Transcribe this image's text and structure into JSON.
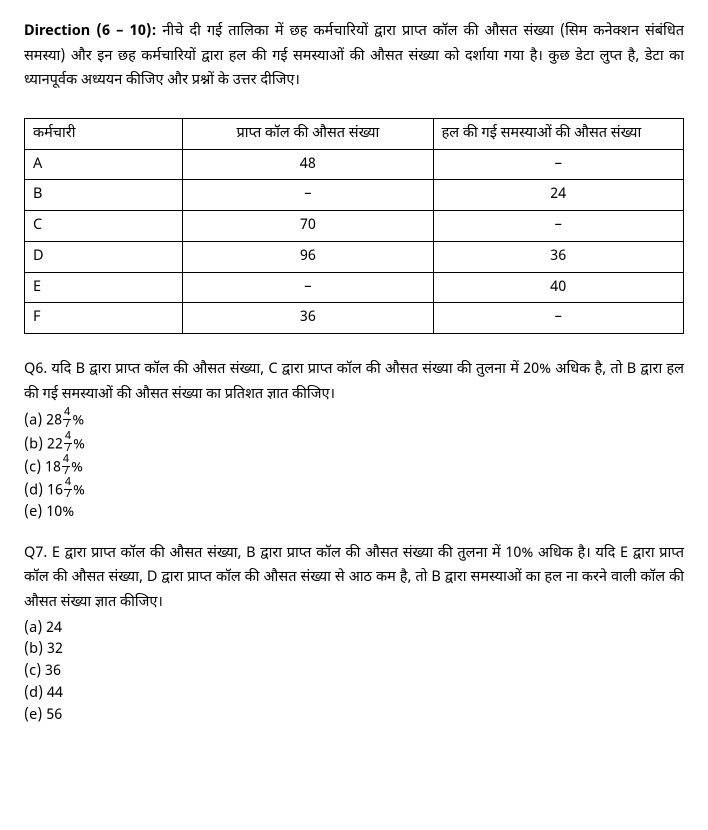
{
  "direction": {
    "label": "Direction (6 – 10): ",
    "text": "नीचे दी गई तालिका में छह कर्मचारियों द्वारा प्राप्त कॉल की औसत संख्या (सिम कनेक्शन संबंधित समस्या) और इन छह कर्मचारियों द्वारा हल की गई समस्याओं की औसत संख्या को दर्शाया गया है। कुछ डेटा लुप्त है, डेटा का ध्यानपूर्वक अध्ययन कीजिए और प्रश्नों के उत्तर दीजिए।"
  },
  "table": {
    "headers": {
      "employee": "कर्मचारी",
      "calls": "प्राप्त कॉल की औसत संख्या",
      "solved": "हल की गई समस्याओं की औसत संख्या"
    },
    "rows": [
      {
        "emp": "A",
        "calls": "48",
        "solved": "–"
      },
      {
        "emp": "B",
        "calls": "–",
        "solved": "24"
      },
      {
        "emp": "C",
        "calls": "70",
        "solved": "–"
      },
      {
        "emp": "D",
        "calls": "96",
        "solved": "36"
      },
      {
        "emp": "E",
        "calls": "–",
        "solved": "40"
      },
      {
        "emp": "F",
        "calls": "36",
        "solved": "–"
      }
    ]
  },
  "q6": {
    "text": "Q6. यदि B द्वारा प्राप्त कॉल की औसत संख्या, C द्वारा प्राप्त कॉल की औसत संख्या की तुलना में 20% अधिक है, तो B द्वारा हल की गई समस्याओं की औसत संख्या का प्रतिशत ज्ञात कीजिए।",
    "options": {
      "a": {
        "pre": "(a) 28",
        "num": "4",
        "den": "7",
        "post": "%"
      },
      "b": {
        "pre": "(b) 22",
        "num": "4",
        "den": "7",
        "post": "%"
      },
      "c": {
        "pre": "(c) 18",
        "num": "4",
        "den": "7",
        "post": "%"
      },
      "d": {
        "pre": "(d) 16",
        "num": "4",
        "den": "7",
        "post": "%"
      },
      "e": "(e) 10%"
    }
  },
  "q7": {
    "text": "Q7. E द्वारा प्राप्त कॉल की औसत संख्या, B द्वारा प्राप्त कॉल की औसत संख्या की तुलना में 10% अधिक है। यदि E द्वारा प्राप्त कॉल की औसत संख्या, D द्वारा प्राप्त कॉल की औसत संख्या से आठ कम है, तो B द्वारा समस्याओं का हल ना करने वाली कॉल की औसत संख्या ज्ञात कीजिए।",
    "options": {
      "a": "(a) 24",
      "b": "(b) 32",
      "c": "(c) 36",
      "d": "(d) 44",
      "e": "(e) 56"
    }
  },
  "styles": {
    "background_color": "#ffffff",
    "text_color": "#000000",
    "border_color": "#000000",
    "body_fontsize": 14.5,
    "frac_fontsize": 11
  }
}
